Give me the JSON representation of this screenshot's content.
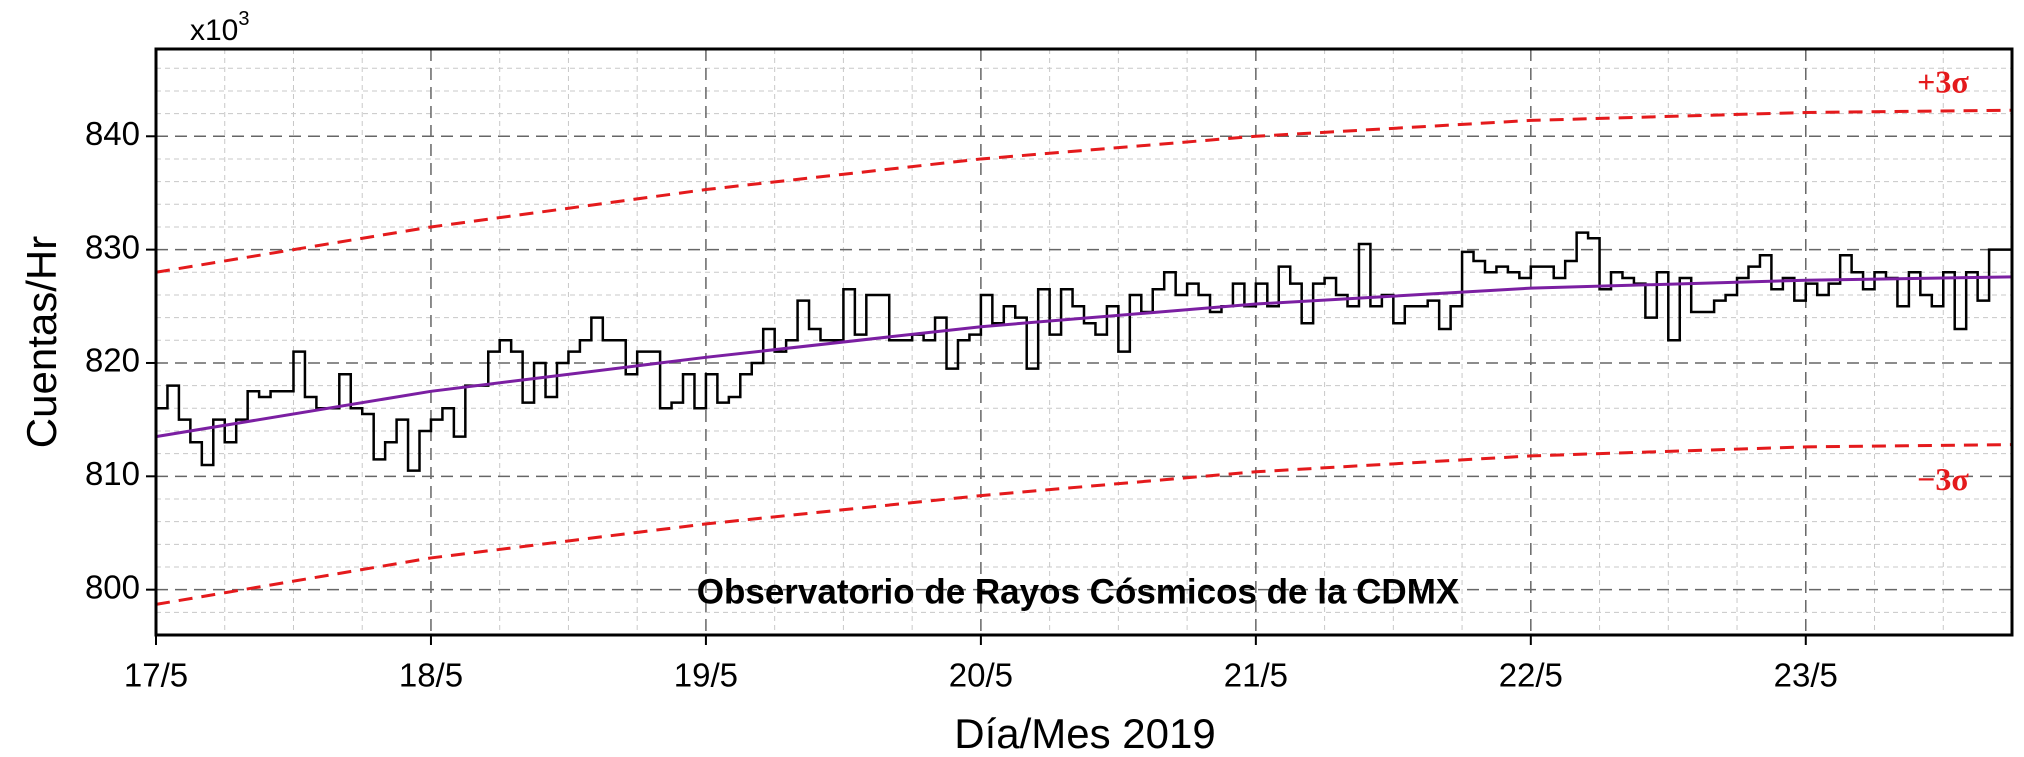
{
  "chart_data": {
    "type": "step",
    "title": "Observatorio de Rayos Cósmicos de la CDMX",
    "x_label": "Día/Mes 2019",
    "y_label": "Cuentas/Hr",
    "y_scale_label": {
      "base": "x10",
      "exponent": "3"
    },
    "xlim": [
      0,
      162
    ],
    "xticks": [
      {
        "value": 0,
        "label": "17/5"
      },
      {
        "value": 24,
        "label": "18/5"
      },
      {
        "value": 48,
        "label": "19/5"
      },
      {
        "value": 72,
        "label": "20/5"
      },
      {
        "value": 96,
        "label": "21/5"
      },
      {
        "value": 120,
        "label": "22/5"
      },
      {
        "value": 144,
        "label": "23/5"
      }
    ],
    "ylim": [
      796,
      847.7
    ],
    "yticks": [
      800,
      810,
      820,
      830,
      840
    ],
    "grid": true,
    "minor_ticks_x": 4,
    "minor_ticks_y": 5,
    "color": "#000000",
    "x": [
      0,
      1,
      2,
      3,
      4,
      5,
      6,
      7,
      8,
      9,
      10,
      11,
      12,
      13,
      14,
      15,
      16,
      17,
      18,
      19,
      20,
      21,
      22,
      23,
      24,
      25,
      26,
      27,
      28,
      29,
      30,
      31,
      32,
      33,
      34,
      35,
      36,
      37,
      38,
      39,
      40,
      41,
      42,
      43,
      44,
      45,
      46,
      47,
      48,
      49,
      50,
      51,
      52,
      53,
      54,
      55,
      56,
      57,
      58,
      59,
      60,
      61,
      62,
      63,
      64,
      65,
      66,
      67,
      68,
      69,
      70,
      71,
      72,
      73,
      74,
      75,
      76,
      77,
      78,
      79,
      80,
      81,
      82,
      83,
      84,
      85,
      86,
      87,
      88,
      89,
      90,
      91,
      92,
      93,
      94,
      95,
      96,
      97,
      98,
      99,
      100,
      101,
      102,
      103,
      104,
      105,
      106,
      107,
      108,
      109,
      110,
      111,
      112,
      113,
      114,
      115,
      116,
      117,
      118,
      119,
      120,
      121,
      122,
      123,
      124,
      125,
      126,
      127,
      128,
      129,
      130,
      131,
      132,
      133,
      134,
      135,
      136,
      137,
      138,
      139,
      140,
      141,
      142,
      143,
      144,
      145,
      146,
      147,
      148,
      149,
      150,
      151,
      152,
      153,
      154,
      155,
      156,
      157,
      158,
      159,
      160,
      161
    ],
    "values": [
      816,
      818,
      815,
      813,
      811,
      815,
      813,
      815,
      817.5,
      817,
      817.5,
      817.5,
      821,
      817,
      816,
      816,
      819,
      816,
      815.5,
      811.5,
      813,
      815,
      810.5,
      814,
      815,
      816,
      813.5,
      818,
      818,
      821,
      822,
      821,
      816.5,
      820,
      817,
      820,
      821,
      822,
      824,
      822,
      822,
      819,
      821,
      821,
      816,
      816.5,
      819,
      816,
      819,
      816.5,
      817,
      819,
      820,
      823,
      821,
      822,
      825.5,
      823,
      822,
      822,
      826.5,
      822.5,
      826,
      826,
      822,
      822,
      822.5,
      822,
      824,
      819.5,
      822,
      822.5,
      826,
      823.5,
      825,
      824,
      819.5,
      826.5,
      822.5,
      826.5,
      825,
      823.5,
      822.5,
      825,
      821,
      826,
      824.5,
      826.5,
      828,
      826,
      827,
      826,
      824.5,
      825,
      827,
      825,
      827,
      825,
      828.5,
      827,
      823.5,
      827,
      827.5,
      826,
      825,
      830.5,
      825,
      826,
      823.5,
      825,
      825,
      825.5,
      823,
      825,
      829.8,
      829,
      828,
      828.5,
      828,
      827.5,
      828.5,
      828.5,
      827.5,
      829,
      831.5,
      831,
      826.5,
      828,
      827.5,
      827,
      824,
      828,
      822,
      827.5,
      824.5,
      824.5,
      825.5,
      826,
      827.5,
      828.5,
      829.5,
      826.5,
      827.5,
      825.5,
      827,
      826,
      827,
      829.5,
      828,
      826.5,
      828,
      827.5,
      825,
      828,
      826,
      825,
      828,
      823,
      828,
      825.5,
      830,
      830
    ],
    "trend": {
      "color": "#7b1fa2",
      "x": [
        0,
        24,
        48,
        72,
        96,
        120,
        144,
        162
      ],
      "values": [
        813.5,
        817.5,
        820.5,
        823.2,
        825.2,
        826.6,
        827.3,
        827.6
      ]
    },
    "bands": [
      {
        "label": "+3σ",
        "color": "#e41a1c",
        "x": [
          0,
          24,
          48,
          72,
          96,
          120,
          144,
          162
        ],
        "values": [
          828,
          832,
          835.3,
          838,
          840,
          841.4,
          842.1,
          842.3
        ]
      },
      {
        "label": "−3σ",
        "color": "#e41a1c",
        "x": [
          0,
          24,
          48,
          72,
          96,
          120,
          144,
          162
        ],
        "values": [
          798.7,
          802.8,
          805.8,
          808.3,
          810.4,
          811.8,
          812.6,
          812.8
        ]
      }
    ]
  }
}
